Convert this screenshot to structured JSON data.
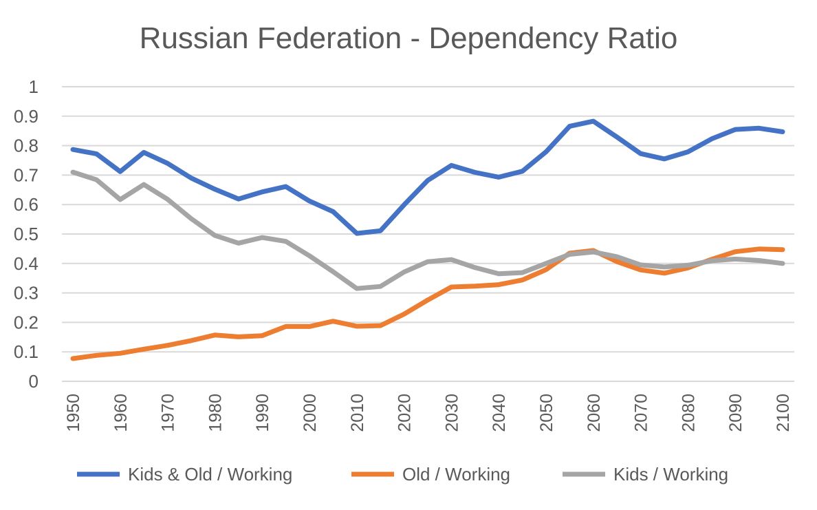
{
  "chart_data": {
    "type": "line",
    "title": "Russian Federation - Dependency Ratio",
    "xlabel": "",
    "ylabel": "",
    "ylim": [
      0,
      1
    ],
    "yticks": [
      "0",
      "0.1",
      "0.2",
      "0.3",
      "0.4",
      "0.5",
      "0.6",
      "0.7",
      "0.8",
      "0.9",
      "1"
    ],
    "xtick_labels": [
      "1950",
      "1960",
      "1970",
      "1980",
      "1990",
      "2000",
      "2010",
      "2020",
      "2030",
      "2040",
      "2050",
      "2060",
      "2070",
      "2080",
      "2090",
      "2100"
    ],
    "x": [
      1950,
      1955,
      1960,
      1965,
      1970,
      1975,
      1980,
      1985,
      1990,
      1995,
      2000,
      2005,
      2010,
      2015,
      2020,
      2025,
      2030,
      2035,
      2040,
      2045,
      2050,
      2055,
      2060,
      2065,
      2070,
      2075,
      2080,
      2085,
      2090,
      2095,
      2100
    ],
    "grid": true,
    "legend_position": "bottom",
    "series": [
      {
        "name": "Kids & Old / Working",
        "color": "#4472c4",
        "values": [
          0.787,
          0.772,
          0.712,
          0.777,
          0.74,
          0.69,
          0.652,
          0.619,
          0.643,
          0.661,
          0.612,
          0.576,
          0.502,
          0.511,
          0.599,
          0.682,
          0.733,
          0.709,
          0.693,
          0.713,
          0.779,
          0.866,
          0.883,
          0.829,
          0.773,
          0.755,
          0.779,
          0.823,
          0.855,
          0.859,
          0.847
        ]
      },
      {
        "name": "Old / Working",
        "color": "#ed7d31",
        "values": [
          0.077,
          0.088,
          0.095,
          0.109,
          0.122,
          0.138,
          0.157,
          0.151,
          0.155,
          0.186,
          0.186,
          0.204,
          0.187,
          0.189,
          0.228,
          0.276,
          0.32,
          0.323,
          0.328,
          0.344,
          0.379,
          0.435,
          0.444,
          0.406,
          0.378,
          0.367,
          0.385,
          0.414,
          0.44,
          0.449,
          0.447
        ]
      },
      {
        "name": "Kids / Working",
        "color": "#a5a5a5",
        "values": [
          0.71,
          0.684,
          0.617,
          0.668,
          0.618,
          0.552,
          0.495,
          0.469,
          0.488,
          0.475,
          0.426,
          0.372,
          0.315,
          0.322,
          0.371,
          0.406,
          0.413,
          0.386,
          0.365,
          0.369,
          0.4,
          0.431,
          0.439,
          0.423,
          0.395,
          0.388,
          0.394,
          0.409,
          0.415,
          0.41,
          0.4
        ]
      }
    ]
  }
}
